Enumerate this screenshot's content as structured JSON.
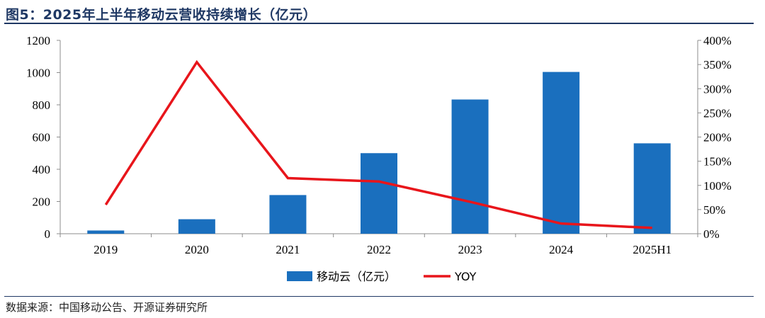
{
  "title": "图5：2025年上半年移动云营收持续增长（亿元）",
  "source": "数据来源：中国移动公告、开源证券研究所",
  "colors": {
    "bar": "#1a6fbe",
    "line": "#e8151b",
    "title": "#1f3864"
  },
  "chart_data": {
    "type": "bar",
    "categories": [
      "2019",
      "2020",
      "2021",
      "2022",
      "2023",
      "2024",
      "2025H1"
    ],
    "series": [
      {
        "name": "移动云（亿元）",
        "type": "bar",
        "axis": "left",
        "values": [
          20,
          90,
          240,
          500,
          833,
          1004,
          561
        ]
      },
      {
        "name": "YOY",
        "type": "line",
        "axis": "right",
        "values": [
          0.6,
          3.55,
          1.15,
          1.08,
          0.66,
          0.21,
          0.12
        ]
      }
    ],
    "y_left": {
      "lim": [
        0,
        1200
      ],
      "ticks": [
        0,
        200,
        400,
        600,
        800,
        1000,
        1200
      ],
      "tick_labels": [
        "0",
        "200",
        "400",
        "600",
        "800",
        "1000",
        "1200"
      ]
    },
    "y_right": {
      "lim": [
        0,
        4
      ],
      "ticks": [
        0,
        0.5,
        1,
        1.5,
        2,
        2.5,
        3,
        3.5,
        4
      ],
      "tick_labels": [
        "0%",
        "50%",
        "100%",
        "150%",
        "200%",
        "250%",
        "300%",
        "350%",
        "400%"
      ]
    },
    "grid": false,
    "legend": "bottom"
  }
}
